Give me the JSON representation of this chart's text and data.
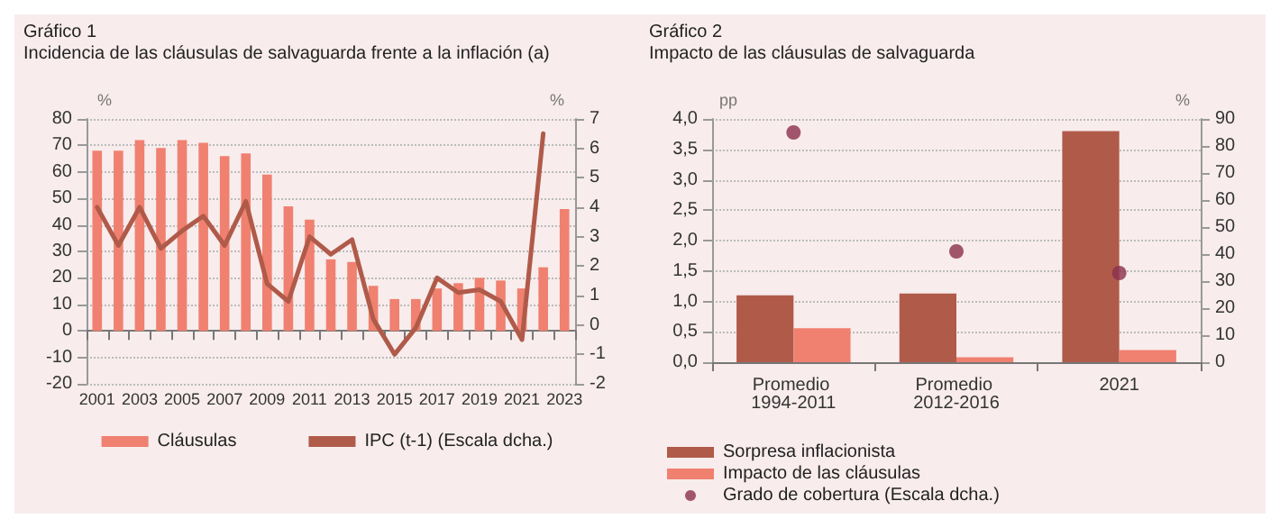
{
  "chart_data": [
    {
      "type": "bar",
      "title": "Gráfico 1",
      "subtitle": "Incidencia de las cláusulas de salvaguarda frente a la inflación (a)",
      "ylabel": "%",
      "y2label": "%",
      "categories": [
        "2001",
        null,
        "2003",
        null,
        "2005",
        null,
        "2007",
        null,
        "2009",
        null,
        "2011",
        null,
        "2013",
        null,
        "2015",
        null,
        "2017",
        null,
        "2019",
        null,
        "2021",
        null,
        "2023"
      ],
      "series": [
        {
          "name": "Cláusulas",
          "color": "#f08070",
          "values": [
            68,
            68,
            72,
            69,
            72,
            71,
            66,
            67,
            59,
            47,
            42,
            27,
            26,
            17,
            12,
            12,
            16,
            18,
            20,
            19,
            16,
            24,
            46
          ]
        },
        {
          "name": "IPC (t-1) (Escala dcha.)",
          "type": "line",
          "axis": "y2",
          "color": "#b05a4a",
          "values": [
            4.0,
            2.7,
            4.0,
            2.6,
            3.2,
            3.7,
            2.7,
            4.2,
            1.4,
            0.8,
            3.0,
            2.4,
            2.9,
            0.2,
            -1.0,
            -0.1,
            1.6,
            1.1,
            1.2,
            0.8,
            -0.5,
            6.5,
            null
          ]
        }
      ],
      "ylim": [
        -20,
        80
      ],
      "yticks": [
        -20,
        -10,
        0,
        10,
        20,
        30,
        40,
        50,
        60,
        70,
        80
      ],
      "y2lim": [
        -2,
        7
      ],
      "y2ticks": [
        -2,
        -1,
        0,
        1,
        2,
        3,
        4,
        5,
        6,
        7
      ],
      "grid": "y",
      "legend": "bottom",
      "marker": "none"
    },
    {
      "type": "bar",
      "title": "Gráfico 2",
      "subtitle": "Impacto de las cláusulas de salvaguarda",
      "ylabel": "pp",
      "y2label": "%",
      "categories": [
        "Promedio 1994-2011",
        "Promedio 2012-2016",
        "2021"
      ],
      "series": [
        {
          "name": "Sorpresa inflacionista",
          "color": "#b05a4a",
          "values": [
            1.1,
            1.13,
            3.8
          ]
        },
        {
          "name": "Impacto de las cláusulas",
          "color": "#f08070",
          "values": [
            0.56,
            0.08,
            0.2
          ]
        },
        {
          "name": "Grado de cobertura (Escala dcha.)",
          "type": "scatter",
          "axis": "y2",
          "color": "#8b2f4e",
          "values": [
            85,
            41,
            33
          ]
        }
      ],
      "ylim": [
        0,
        4
      ],
      "yticks": [
        {
          "value": 0,
          "label": "0,0"
        },
        {
          "value": 0.5,
          "label": "0,5"
        },
        {
          "value": 1,
          "label": "1,0"
        },
        {
          "value": 1.5,
          "label": "1,5"
        },
        {
          "value": 2,
          "label": "2,0"
        },
        {
          "value": 2.5,
          "label": "2,5"
        },
        {
          "value": 3,
          "label": "3,0"
        },
        {
          "value": 3.5,
          "label": "3,5"
        },
        {
          "value": 4,
          "label": "4,0"
        }
      ],
      "y2lim": [
        0,
        90
      ],
      "y2ticks": [
        0,
        10,
        20,
        30,
        40,
        50,
        60,
        70,
        80,
        90
      ],
      "grid": "y",
      "legend": "bottom left",
      "marker": "circle"
    }
  ]
}
